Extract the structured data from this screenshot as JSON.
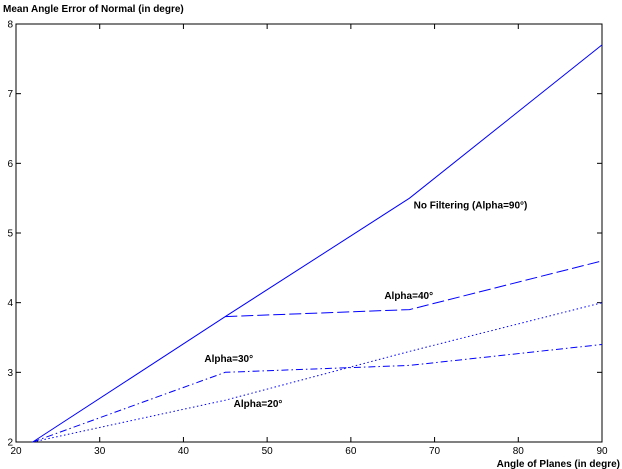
{
  "chart_data": {
    "type": "line",
    "title": "",
    "xlabel": "Angle of Planes (in degre)",
    "ylabel": "Mean Angle Error of Normal (in degre)",
    "xlim": [
      20,
      90
    ],
    "ylim": [
      2,
      8
    ],
    "xticks": [
      20,
      30,
      40,
      50,
      60,
      70,
      80,
      90
    ],
    "yticks": [
      2,
      3,
      4,
      5,
      6,
      7,
      8
    ],
    "grid": false,
    "line_color": "#0000ff",
    "series": [
      {
        "label": "No Filtering (Alpha=90°)",
        "style": "solid",
        "x": [
          22,
          45,
          67,
          90
        ],
        "y": [
          2.0,
          3.8,
          5.5,
          7.7
        ],
        "label_at": [
          67.5,
          5.35
        ]
      },
      {
        "label": "Alpha=40°",
        "style": "dashed",
        "x": [
          45,
          67,
          90
        ],
        "y": [
          3.8,
          3.9,
          4.6
        ],
        "label_at": [
          64,
          4.05
        ]
      },
      {
        "label": "Alpha=30°",
        "style": "dashdot",
        "x": [
          22,
          45,
          67,
          90
        ],
        "y": [
          2.0,
          3.0,
          3.1,
          3.4
        ],
        "label_at": [
          42.5,
          3.15
        ]
      },
      {
        "label": "Alpha=20°",
        "style": "dotted",
        "x": [
          22,
          45,
          67,
          90
        ],
        "y": [
          2.0,
          2.6,
          3.3,
          4.0
        ],
        "label_at": [
          46,
          2.5
        ]
      }
    ]
  }
}
